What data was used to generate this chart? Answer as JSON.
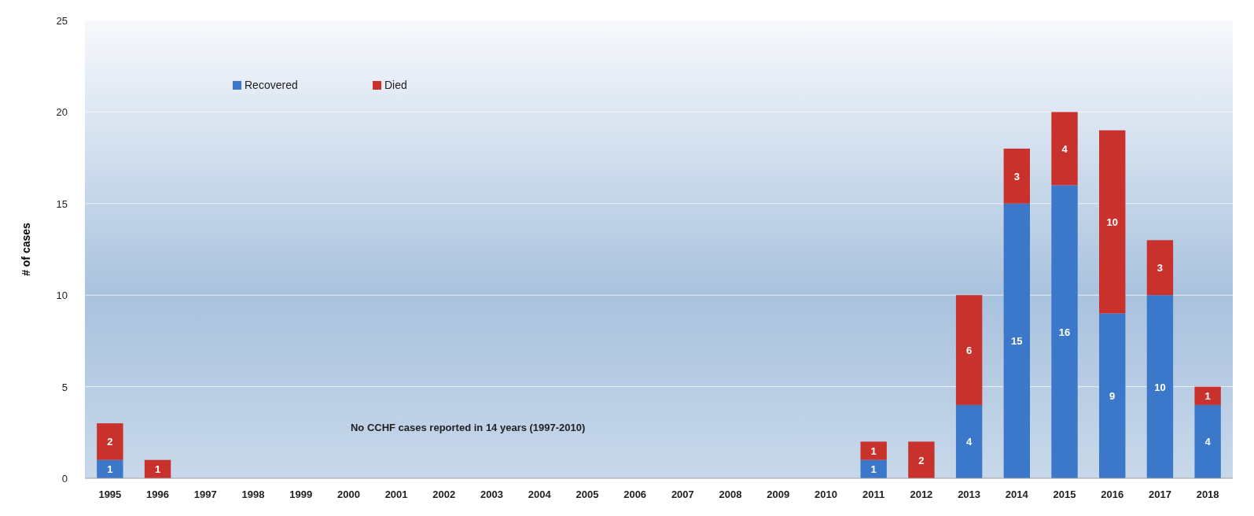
{
  "chart_data": {
    "type": "bar",
    "stacked": true,
    "ylabel": "# of cases",
    "categories": [
      "1995",
      "1996",
      "1997",
      "1998",
      "1999",
      "2000",
      "2001",
      "2002",
      "2003",
      "2004",
      "2005",
      "2006",
      "2007",
      "2008",
      "2009",
      "2010",
      "2011",
      "2012",
      "2013",
      "2014",
      "2015",
      "2016",
      "2017",
      "2018"
    ],
    "series": [
      {
        "name": "Recovered",
        "color": "#3b78c9",
        "values": [
          1,
          null,
          null,
          null,
          null,
          null,
          null,
          null,
          null,
          null,
          null,
          null,
          null,
          null,
          null,
          null,
          1,
          null,
          4,
          15,
          16,
          9,
          10,
          4
        ]
      },
      {
        "name": "Died",
        "color": "#c8312c",
        "values": [
          2,
          1,
          null,
          null,
          null,
          null,
          null,
          null,
          null,
          null,
          null,
          null,
          null,
          null,
          null,
          null,
          1,
          2,
          6,
          3,
          4,
          10,
          3,
          1
        ]
      }
    ],
    "ylim": [
      0,
      25
    ],
    "yticks": [
      0,
      5,
      10,
      15,
      20,
      25
    ],
    "grid": "y",
    "legend": "top left",
    "data_labels": true,
    "annotations": [
      "No CCHF cases reported in 14 years (1997-2010)"
    ]
  }
}
